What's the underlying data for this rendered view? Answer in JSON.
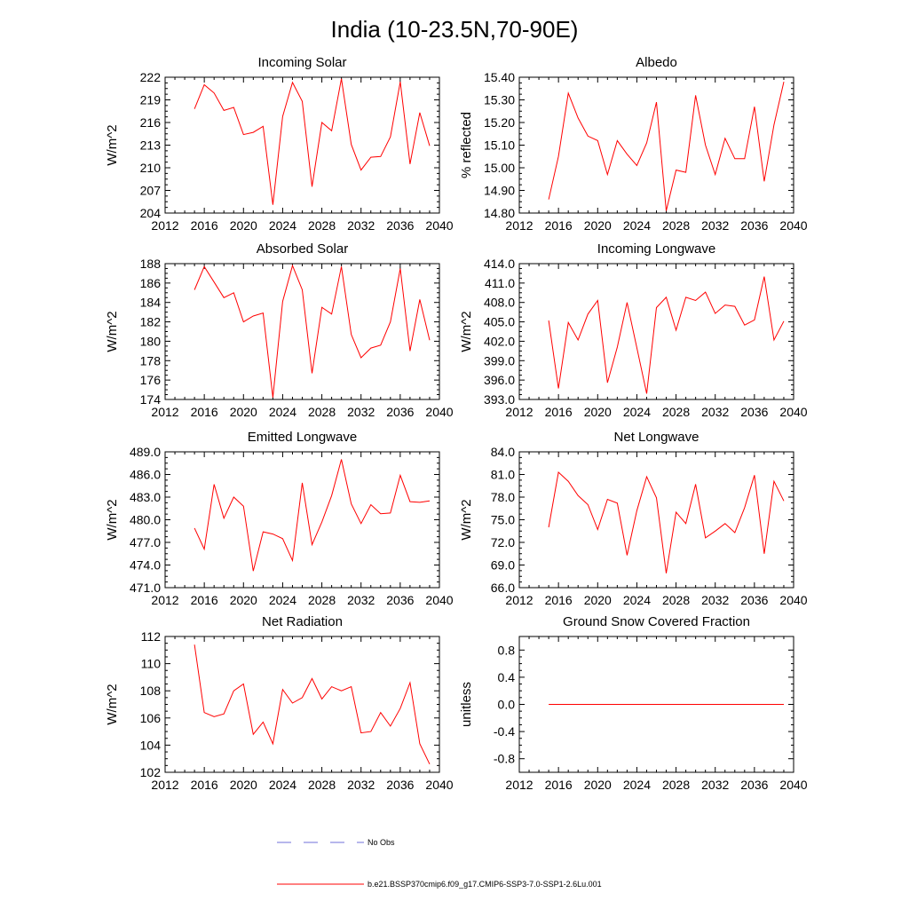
{
  "title": "India (10-23.5N,70-90E)",
  "chart_data": [
    {
      "type": "line",
      "title": "Incoming Solar",
      "ylabel": "W/m^2",
      "xlim": [
        2012,
        2040
      ],
      "ylim": [
        204,
        222
      ],
      "xticks": [
        2012,
        2016,
        2020,
        2024,
        2028,
        2032,
        2036,
        2040
      ],
      "yticks": [
        204,
        207,
        210,
        213,
        216,
        219,
        222
      ],
      "ytick_decimals": 0,
      "x": [
        2015,
        2016,
        2017,
        2018,
        2019,
        2020,
        2021,
        2022,
        2023,
        2024,
        2025,
        2026,
        2027,
        2028,
        2029,
        2030,
        2031,
        2032,
        2033,
        2034,
        2035,
        2036,
        2037,
        2038,
        2039
      ],
      "series": [
        {
          "values": [
            217.8,
            221.0,
            219.9,
            217.6,
            218.0,
            214.4,
            214.7,
            215.5,
            205.1,
            216.8,
            221.3,
            218.8,
            207.5,
            216.0,
            214.9,
            221.8,
            213.1,
            209.7,
            211.4,
            211.5,
            214.1,
            221.4,
            210.5,
            217.3,
            212.9
          ]
        }
      ]
    },
    {
      "type": "line",
      "title": "Albedo",
      "ylabel": "% reflected",
      "xlim": [
        2012,
        2040
      ],
      "ylim": [
        14.8,
        15.4
      ],
      "xticks": [
        2012,
        2016,
        2020,
        2024,
        2028,
        2032,
        2036,
        2040
      ],
      "yticks": [
        14.8,
        14.9,
        15.0,
        15.1,
        15.2,
        15.3,
        15.4
      ],
      "ytick_decimals": 2,
      "x": [
        2015,
        2016,
        2017,
        2018,
        2019,
        2020,
        2021,
        2022,
        2023,
        2024,
        2025,
        2026,
        2027,
        2028,
        2029,
        2030,
        2031,
        2032,
        2033,
        2034,
        2035,
        2036,
        2037,
        2038,
        2039
      ],
      "series": [
        {
          "values": [
            14.86,
            15.05,
            15.33,
            15.22,
            15.14,
            15.12,
            14.97,
            15.12,
            15.06,
            15.01,
            15.11,
            15.29,
            14.81,
            14.99,
            14.98,
            15.32,
            15.1,
            14.97,
            15.13,
            15.04,
            15.04,
            15.27,
            14.94,
            15.19,
            15.38
          ]
        }
      ]
    },
    {
      "type": "line",
      "title": "Absorbed Solar",
      "ylabel": "W/m^2",
      "xlim": [
        2012,
        2040
      ],
      "ylim": [
        174,
        188
      ],
      "xticks": [
        2012,
        2016,
        2020,
        2024,
        2028,
        2032,
        2036,
        2040
      ],
      "yticks": [
        174,
        176,
        178,
        180,
        182,
        184,
        186,
        188
      ],
      "ytick_decimals": 0,
      "x": [
        2015,
        2016,
        2017,
        2018,
        2019,
        2020,
        2021,
        2022,
        2023,
        2024,
        2025,
        2026,
        2027,
        2028,
        2029,
        2030,
        2031,
        2032,
        2033,
        2034,
        2035,
        2036,
        2037,
        2038,
        2039
      ],
      "series": [
        {
          "values": [
            185.3,
            187.7,
            186.1,
            184.5,
            185.0,
            182.0,
            182.6,
            182.9,
            174.2,
            184.1,
            187.8,
            185.3,
            176.7,
            183.5,
            182.8,
            187.7,
            180.7,
            178.3,
            179.3,
            179.6,
            182.0,
            187.5,
            179.0,
            184.3,
            180.1
          ]
        }
      ]
    },
    {
      "type": "line",
      "title": "Incoming Longwave",
      "ylabel": "W/m^2",
      "xlim": [
        2012,
        2040
      ],
      "ylim": [
        393,
        414
      ],
      "xticks": [
        2012,
        2016,
        2020,
        2024,
        2028,
        2032,
        2036,
        2040
      ],
      "yticks": [
        393,
        396,
        399,
        402,
        405,
        408,
        411,
        414
      ],
      "ytick_decimals": 1,
      "x": [
        2015,
        2016,
        2017,
        2018,
        2019,
        2020,
        2021,
        2022,
        2023,
        2024,
        2025,
        2026,
        2027,
        2028,
        2029,
        2030,
        2031,
        2032,
        2033,
        2034,
        2035,
        2036,
        2037,
        2038,
        2039
      ],
      "series": [
        {
          "values": [
            405.2,
            394.7,
            404.9,
            402.2,
            406.2,
            408.3,
            395.6,
            401.1,
            408.0,
            401.0,
            393.9,
            407.2,
            408.8,
            403.7,
            408.8,
            408.3,
            409.6,
            406.3,
            407.6,
            407.4,
            404.5,
            405.3,
            412.0,
            402.2,
            405.1
          ]
        }
      ]
    },
    {
      "type": "line",
      "title": "Emitted Longwave",
      "ylabel": "W/m^2",
      "xlim": [
        2012,
        2040
      ],
      "ylim": [
        471,
        489
      ],
      "xticks": [
        2012,
        2016,
        2020,
        2024,
        2028,
        2032,
        2036,
        2040
      ],
      "yticks": [
        471,
        474,
        477,
        480,
        483,
        486,
        489
      ],
      "ytick_decimals": 1,
      "x": [
        2015,
        2016,
        2017,
        2018,
        2019,
        2020,
        2021,
        2022,
        2023,
        2024,
        2025,
        2026,
        2027,
        2028,
        2029,
        2030,
        2031,
        2032,
        2033,
        2034,
        2035,
        2036,
        2037,
        2038,
        2039
      ],
      "series": [
        {
          "values": [
            478.9,
            476.1,
            484.7,
            480.2,
            483.0,
            481.8,
            473.2,
            478.4,
            478.1,
            477.5,
            474.6,
            484.9,
            476.7,
            479.7,
            483.2,
            488.0,
            482.1,
            479.5,
            482.0,
            480.8,
            480.9,
            485.9,
            482.4,
            482.3,
            482.5
          ]
        }
      ]
    },
    {
      "type": "line",
      "title": "Net Longwave",
      "ylabel": "W/m^2",
      "xlim": [
        2012,
        2040
      ],
      "ylim": [
        66,
        84
      ],
      "xticks": [
        2012,
        2016,
        2020,
        2024,
        2028,
        2032,
        2036,
        2040
      ],
      "yticks": [
        66,
        69,
        72,
        75,
        78,
        81,
        84
      ],
      "ytick_decimals": 1,
      "x": [
        2015,
        2016,
        2017,
        2018,
        2019,
        2020,
        2021,
        2022,
        2023,
        2024,
        2025,
        2026,
        2027,
        2028,
        2029,
        2030,
        2031,
        2032,
        2033,
        2034,
        2035,
        2036,
        2037,
        2038,
        2039
      ],
      "series": [
        {
          "values": [
            74.0,
            81.3,
            80.1,
            78.2,
            77.0,
            73.7,
            77.7,
            77.2,
            70.3,
            76.2,
            80.7,
            77.9,
            67.9,
            76.0,
            74.5,
            79.7,
            72.6,
            73.5,
            74.5,
            73.3,
            76.6,
            80.9,
            70.5,
            80.1,
            77.5
          ]
        }
      ]
    },
    {
      "type": "line",
      "title": "Net Radiation",
      "ylabel": "W/m^2",
      "xlim": [
        2012,
        2040
      ],
      "ylim": [
        102,
        112
      ],
      "xticks": [
        2012,
        2016,
        2020,
        2024,
        2028,
        2032,
        2036,
        2040
      ],
      "yticks": [
        102,
        104,
        106,
        108,
        110,
        112
      ],
      "ytick_decimals": 0,
      "x": [
        2015,
        2016,
        2017,
        2018,
        2019,
        2020,
        2021,
        2022,
        2023,
        2024,
        2025,
        2026,
        2027,
        2028,
        2029,
        2030,
        2031,
        2032,
        2033,
        2034,
        2035,
        2036,
        2037,
        2038,
        2039
      ],
      "series": [
        {
          "values": [
            111.4,
            106.4,
            106.1,
            106.3,
            108.0,
            108.5,
            104.8,
            105.7,
            104.1,
            108.1,
            107.1,
            107.5,
            108.9,
            107.4,
            108.3,
            108.0,
            108.3,
            104.9,
            105.0,
            106.4,
            105.4,
            106.7,
            108.6,
            104.1,
            102.6
          ]
        }
      ]
    },
    {
      "type": "line",
      "title": "Ground Snow Covered Fraction",
      "ylabel": "unitless",
      "xlim": [
        2012,
        2040
      ],
      "ylim": [
        -1.0,
        1.0
      ],
      "xticks": [
        2012,
        2016,
        2020,
        2024,
        2028,
        2032,
        2036,
        2040
      ],
      "yticks": [
        -0.8,
        -0.4,
        0.0,
        0.4,
        0.8
      ],
      "ytick_decimals": 1,
      "x": [
        2015,
        2016,
        2017,
        2018,
        2019,
        2020,
        2021,
        2022,
        2023,
        2024,
        2025,
        2026,
        2027,
        2028,
        2029,
        2030,
        2031,
        2032,
        2033,
        2034,
        2035,
        2036,
        2037,
        2038,
        2039
      ],
      "series": [
        {
          "values": [
            0,
            0,
            0,
            0,
            0,
            0,
            0,
            0,
            0,
            0,
            0,
            0,
            0,
            0,
            0,
            0,
            0,
            0,
            0,
            0,
            0,
            0,
            0,
            0,
            0
          ]
        }
      ]
    }
  ],
  "legend": [
    {
      "label": "No Obs",
      "color": "#6f6fd8",
      "dash": true
    },
    {
      "label": "b.e21.BSSP370cmip6.f09_g17.CMIP6-SSP3-7.0-SSP1-2.6Lu.001",
      "color": "#ff0000",
      "dash": false
    }
  ],
  "colors": {
    "series_line": "#ff0000",
    "axes": "#000000",
    "obs_line": "#6f6fd8"
  }
}
